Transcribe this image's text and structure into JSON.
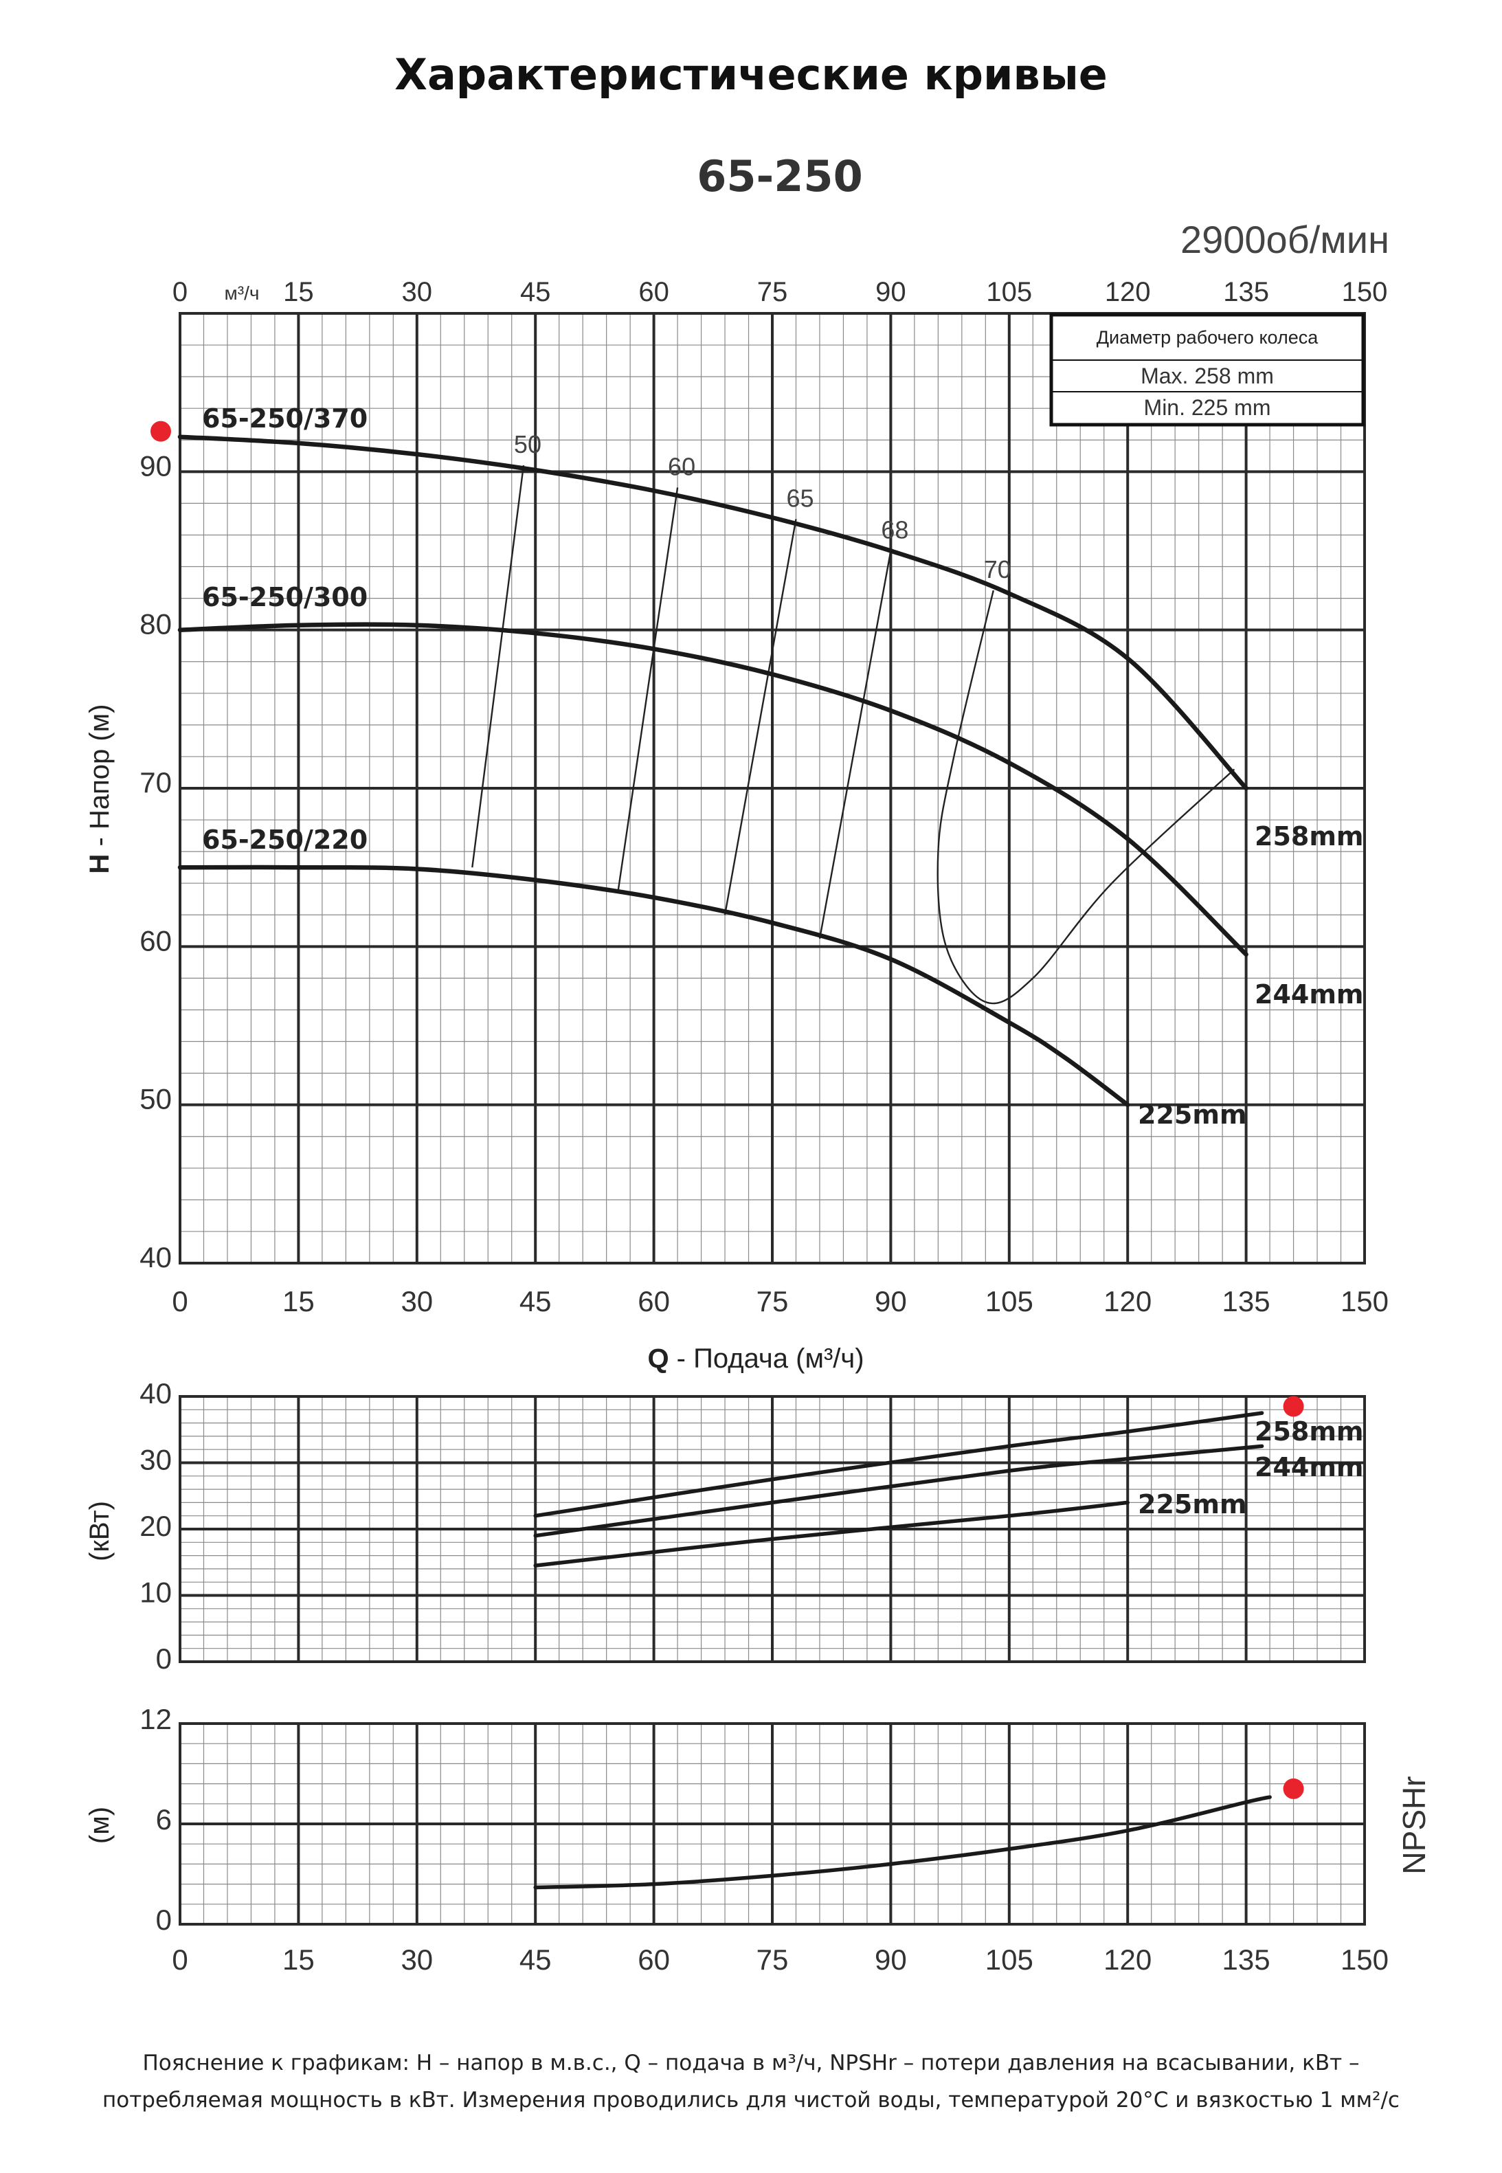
{
  "page": {
    "title": "Характеристические кривые",
    "footer": "Пояснение к графикам: H – напор в м.в.с., Q – подача в м³/ч, NPSHr – потери давления на всасывании, кВт – потребляемая мощность в кВт. Измерения проводились для чистой воды, температурой 20°C и вязкостью 1 мм²/с"
  },
  "colors": {
    "curve": "#1a1a1a",
    "grid": "#2a2a2a",
    "marker": "#e8232b"
  },
  "chart_data": [
    {
      "type": "line",
      "name": "head",
      "title": "65-250",
      "speed_label": "2900об/мин",
      "xlabel_bold": "Q",
      "xlabel": "- Подача (м³/ч)",
      "ylabel_bold": "H",
      "ylabel": "- Напор (м)",
      "top_axis_unit": "м³/ч",
      "xlim": [
        0,
        150
      ],
      "ylim": [
        40,
        100
      ],
      "x_ticks": [
        0,
        15,
        30,
        45,
        60,
        75,
        90,
        105,
        120,
        135,
        150
      ],
      "y_ticks": [
        40,
        50,
        60,
        70,
        80,
        90
      ],
      "legend_box": {
        "title": "Диаметр рабочего колеса",
        "rows": [
          "Max.  258 mm",
          "Min.  225 mm"
        ]
      },
      "series": [
        {
          "name": "258mm",
          "model_label": "65-250/370",
          "label": "258mm",
          "points": [
            [
              0,
              92.2
            ],
            [
              15,
              91.8
            ],
            [
              30,
              91.1
            ],
            [
              45,
              90.1
            ],
            [
              60,
              88.8
            ],
            [
              75,
              87.1
            ],
            [
              90,
              85
            ],
            [
              105,
              82.3
            ],
            [
              120,
              78.2
            ],
            [
              135,
              70
            ]
          ]
        },
        {
          "name": "244mm",
          "model_label": "65-250/300",
          "label": "244mm",
          "points": [
            [
              0,
              80
            ],
            [
              15,
              80.3
            ],
            [
              30,
              80.3
            ],
            [
              45,
              79.8
            ],
            [
              60,
              78.8
            ],
            [
              75,
              77.2
            ],
            [
              90,
              74.9
            ],
            [
              105,
              71.6
            ],
            [
              120,
              66.8
            ],
            [
              135,
              59.5
            ]
          ]
        },
        {
          "name": "225mm",
          "model_label": "65-250/220",
          "label": "225mm",
          "points": [
            [
              0,
              65
            ],
            [
              15,
              65
            ],
            [
              30,
              64.9
            ],
            [
              45,
              64.2
            ],
            [
              60,
              63.1
            ],
            [
              75,
              61.5
            ],
            [
              90,
              59.2
            ],
            [
              105,
              55.2
            ],
            [
              112,
              53
            ],
            [
              120,
              50
            ]
          ]
        }
      ],
      "efficiency_curves": [
        {
          "label": "50",
          "points": [
            [
              43.5,
              90.4
            ],
            [
              37,
              65
            ]
          ]
        },
        {
          "label": "60",
          "points": [
            [
              63,
              89
            ],
            [
              55.5,
              63.6
            ]
          ]
        },
        {
          "label": "65",
          "points": [
            [
              78,
              87
            ],
            [
              69,
              62
            ]
          ]
        },
        {
          "label": "68",
          "points": [
            [
              90,
              85
            ],
            [
              81,
              60.5
            ]
          ]
        },
        {
          "label": "70",
          "points": [
            [
              103,
              82.5
            ],
            [
              98,
              72
            ],
            [
              96,
              66
            ],
            [
              97,
              60
            ],
            [
              102,
              56.5
            ],
            [
              108,
              58
            ],
            [
              118,
              64
            ],
            [
              133.5,
              71.2
            ]
          ]
        }
      ],
      "marker": {
        "x": -2.5,
        "y": 92.2
      }
    },
    {
      "type": "line",
      "name": "power",
      "ylabel": "(кВт)",
      "xlim": [
        0,
        150
      ],
      "ylim": [
        0,
        40
      ],
      "y_ticks": [
        0,
        10,
        20,
        30,
        40
      ],
      "series": [
        {
          "name": "258mm",
          "label": "258mm",
          "points": [
            [
              45,
              22
            ],
            [
              75,
              27.5
            ],
            [
              105,
              32.5
            ],
            [
              120,
              34.7
            ],
            [
              137,
              37.5
            ]
          ]
        },
        {
          "name": "244mm",
          "label": "244mm",
          "points": [
            [
              45,
              19
            ],
            [
              75,
              24
            ],
            [
              105,
              28.8
            ],
            [
              120,
              30.6
            ],
            [
              137,
              32.5
            ]
          ]
        },
        {
          "name": "225mm",
          "label": "225mm",
          "points": [
            [
              45,
              14.5
            ],
            [
              75,
              18.5
            ],
            [
              105,
              22
            ],
            [
              120,
              24
            ]
          ]
        }
      ],
      "marker": {
        "x": 141,
        "y": 38.5
      }
    },
    {
      "type": "line",
      "name": "npsh",
      "ylabel": "(м)",
      "right_label": "NPSHr",
      "xlim": [
        0,
        150
      ],
      "ylim": [
        0,
        12
      ],
      "x_ticks": [
        0,
        15,
        30,
        45,
        60,
        75,
        90,
        105,
        120,
        135,
        150
      ],
      "y_ticks": [
        0,
        6,
        12
      ],
      "y_tick_labels": [
        "0",
        "6",
        "12"
      ],
      "series": [
        {
          "name": "NPSHr",
          "points": [
            [
              45,
              2.2
            ],
            [
              60,
              2.4
            ],
            [
              75,
              2.9
            ],
            [
              90,
              3.6
            ],
            [
              105,
              4.5
            ],
            [
              120,
              5.6
            ],
            [
              135,
              7.3
            ],
            [
              138,
              7.6
            ]
          ]
        }
      ],
      "marker": {
        "x": 141,
        "y": 8.1
      }
    }
  ]
}
